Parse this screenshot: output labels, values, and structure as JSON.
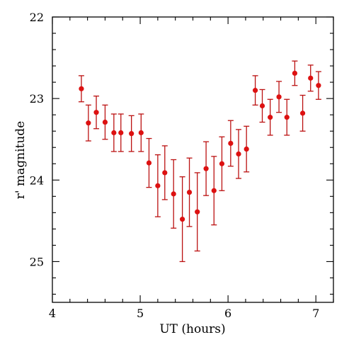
{
  "chart_data": {
    "type": "scatter",
    "title": "",
    "xlabel": "UT (hours)",
    "ylabel": "r' magnitude",
    "xlim": [
      4,
      7.2
    ],
    "ylim": [
      25.5,
      22
    ],
    "y_inverted": true,
    "grid": false,
    "legend": "none",
    "x_ticks": [
      4,
      5,
      6,
      7
    ],
    "y_ticks": [
      22,
      23,
      24,
      25
    ],
    "x_tick_labels": [
      "4",
      "5",
      "6",
      "7"
    ],
    "y_tick_labels": [
      "22",
      "23",
      "24",
      "25"
    ],
    "marker_color": "#dd1111",
    "errorbar_color": "#bb1111",
    "points": [
      {
        "x": 4.33,
        "y": 22.88,
        "err": 0.16
      },
      {
        "x": 4.41,
        "y": 23.3,
        "err": 0.22
      },
      {
        "x": 4.5,
        "y": 23.17,
        "err": 0.2
      },
      {
        "x": 4.6,
        "y": 23.29,
        "err": 0.21
      },
      {
        "x": 4.7,
        "y": 23.42,
        "err": 0.23
      },
      {
        "x": 4.78,
        "y": 23.42,
        "err": 0.23
      },
      {
        "x": 4.9,
        "y": 23.43,
        "err": 0.22
      },
      {
        "x": 5.01,
        "y": 23.42,
        "err": 0.23
      },
      {
        "x": 5.1,
        "y": 23.79,
        "err": 0.3
      },
      {
        "x": 5.2,
        "y": 24.07,
        "err": 0.38
      },
      {
        "x": 5.28,
        "y": 23.91,
        "err": 0.33
      },
      {
        "x": 5.38,
        "y": 24.17,
        "err": 0.42
      },
      {
        "x": 5.48,
        "y": 24.48,
        "err": 0.52
      },
      {
        "x": 5.56,
        "y": 24.15,
        "err": 0.42
      },
      {
        "x": 5.65,
        "y": 24.39,
        "err": 0.48
      },
      {
        "x": 5.75,
        "y": 23.86,
        "err": 0.33
      },
      {
        "x": 5.84,
        "y": 24.13,
        "err": 0.42
      },
      {
        "x": 5.93,
        "y": 23.8,
        "err": 0.33
      },
      {
        "x": 6.03,
        "y": 23.55,
        "err": 0.28
      },
      {
        "x": 6.12,
        "y": 23.68,
        "err": 0.3
      },
      {
        "x": 6.21,
        "y": 23.62,
        "err": 0.28
      },
      {
        "x": 6.31,
        "y": 22.9,
        "err": 0.18
      },
      {
        "x": 6.39,
        "y": 23.09,
        "err": 0.2
      },
      {
        "x": 6.48,
        "y": 23.23,
        "err": 0.22
      },
      {
        "x": 6.58,
        "y": 22.98,
        "err": 0.19
      },
      {
        "x": 6.67,
        "y": 23.23,
        "err": 0.22
      },
      {
        "x": 6.76,
        "y": 22.69,
        "err": 0.15
      },
      {
        "x": 6.85,
        "y": 23.18,
        "err": 0.22
      },
      {
        "x": 6.94,
        "y": 22.75,
        "err": 0.16
      },
      {
        "x": 7.03,
        "y": 22.84,
        "err": 0.17
      }
    ]
  }
}
